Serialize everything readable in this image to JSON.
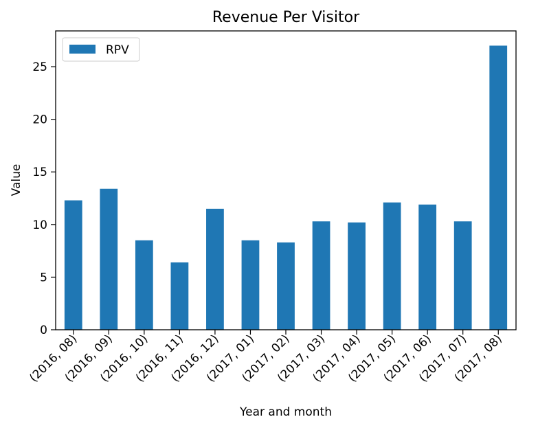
{
  "chart_data": {
    "type": "bar",
    "title": "Revenue Per Visitor",
    "xlabel": "Year and month",
    "ylabel": "Value",
    "categories": [
      "(2016, 08)",
      "(2016, 09)",
      "(2016, 10)",
      "(2016, 11)",
      "(2016, 12)",
      "(2017, 01)",
      "(2017, 02)",
      "(2017, 03)",
      "(2017, 04)",
      "(2017, 05)",
      "(2017, 06)",
      "(2017, 07)",
      "(2017, 08)"
    ],
    "series": [
      {
        "name": "RPV",
        "color": "#1f77b4",
        "values": [
          12.3,
          13.4,
          8.5,
          6.4,
          11.5,
          8.5,
          8.3,
          10.3,
          10.2,
          12.1,
          11.9,
          10.3,
          27.0
        ]
      }
    ],
    "ylim": [
      0,
      28.4
    ],
    "yticks": [
      0,
      5,
      10,
      15,
      20,
      25
    ],
    "legend": "top-left",
    "grid": false
  }
}
